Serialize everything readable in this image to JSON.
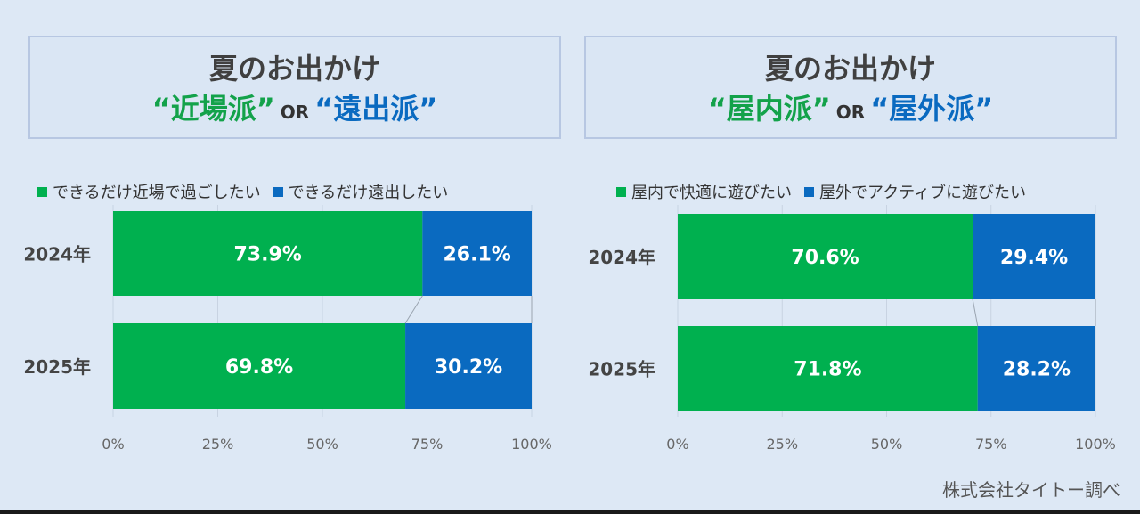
{
  "source": "株式会社タイトー調べ",
  "colors": {
    "green": "#00b04f",
    "blue": "#0a6ac0",
    "text_green": "#13a24a",
    "text_blue": "#0a6ac0"
  },
  "chart_data": [
    {
      "type": "bar",
      "orientation": "horizontal",
      "stacked": true,
      "title_line1": "夏のお出かけ",
      "title_a": "“近場派”",
      "title_or": "OR",
      "title_b": "“遠出派”",
      "categories": [
        "2024年",
        "2025年"
      ],
      "series": [
        {
          "name": "できるだけ近場で過ごしたい",
          "color": "#00b04f",
          "values": [
            73.9,
            69.8
          ],
          "labels": [
            "73.9%",
            "69.8%"
          ]
        },
        {
          "name": "できるだけ遠出したい",
          "color": "#0a6ac0",
          "values": [
            26.1,
            30.2
          ],
          "labels": [
            "26.1%",
            "30.2%"
          ]
        }
      ],
      "xlim": [
        0,
        100
      ],
      "xticks": [
        "0%",
        "25%",
        "50%",
        "75%",
        "100%"
      ],
      "grid": true,
      "legend": "top"
    },
    {
      "type": "bar",
      "orientation": "horizontal",
      "stacked": true,
      "title_line1": "夏のお出かけ",
      "title_a": "“屋内派”",
      "title_or": "OR",
      "title_b": "“屋外派”",
      "categories": [
        "2024年",
        "2025年"
      ],
      "series": [
        {
          "name": "屋内で快適に遊びたい",
          "color": "#00b04f",
          "values": [
            70.6,
            71.8
          ],
          "labels": [
            "70.6%",
            "71.8%"
          ]
        },
        {
          "name": "屋外でアクティブに遊びたい",
          "color": "#0a6ac0",
          "values": [
            29.4,
            28.2
          ],
          "labels": [
            "29.4%",
            "28.2%"
          ]
        }
      ],
      "xlim": [
        0,
        100
      ],
      "xticks": [
        "0%",
        "25%",
        "50%",
        "75%",
        "100%"
      ],
      "grid": true,
      "legend": "top"
    }
  ]
}
